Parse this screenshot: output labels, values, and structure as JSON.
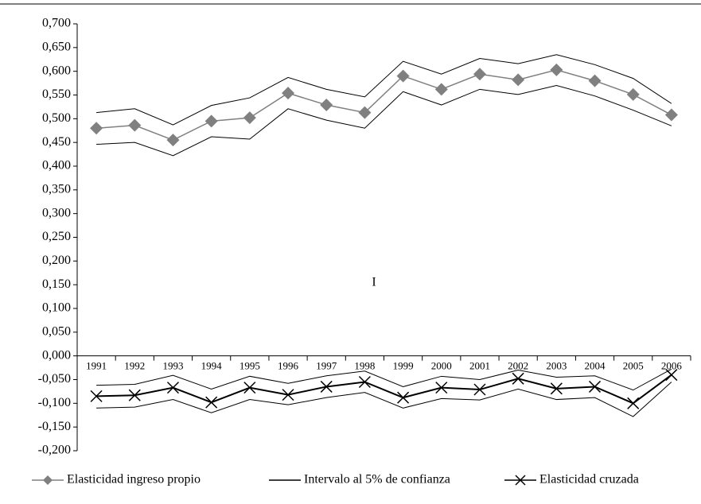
{
  "chart_data": {
    "type": "line",
    "categories": [
      "1991",
      "1992",
      "1993",
      "1994",
      "1995",
      "1996",
      "1997",
      "1998",
      "1999",
      "2000",
      "2001",
      "2002",
      "2003",
      "2004",
      "2005",
      "2006"
    ],
    "series": [
      {
        "name": "Elasticidad ingreso propio",
        "color": "#808080",
        "marker": "diamond",
        "values": [
          0.48,
          0.486,
          0.455,
          0.495,
          0.502,
          0.554,
          0.529,
          0.513,
          0.59,
          0.562,
          0.594,
          0.582,
          0.603,
          0.58,
          0.551,
          0.508
        ]
      },
      {
        "name": "Elasticidad cruzada",
        "color": "#000000",
        "marker": "x",
        "values": [
          -0.085,
          -0.083,
          -0.067,
          -0.098,
          -0.067,
          -0.082,
          -0.065,
          -0.055,
          -0.088,
          -0.067,
          -0.071,
          -0.048,
          -0.069,
          -0.065,
          -0.1,
          -0.04
        ]
      }
    ],
    "interval": {
      "name": "Intervalo al 5% de confianza",
      "color": "#000000",
      "bands": [
        {
          "upper": [
            0.513,
            0.521,
            0.487,
            0.528,
            0.544,
            0.587,
            0.562,
            0.546,
            0.621,
            0.594,
            0.627,
            0.616,
            0.635,
            0.614,
            0.585,
            0.532
          ],
          "lower": [
            0.446,
            0.45,
            0.422,
            0.462,
            0.457,
            0.521,
            0.497,
            0.48,
            0.557,
            0.529,
            0.562,
            0.551,
            0.57,
            0.548,
            0.518,
            0.485
          ]
        },
        {
          "upper": [
            -0.062,
            -0.06,
            -0.041,
            -0.07,
            -0.043,
            -0.058,
            -0.042,
            -0.032,
            -0.065,
            -0.043,
            -0.05,
            -0.03,
            -0.045,
            -0.042,
            -0.072,
            -0.028
          ],
          "lower": [
            -0.11,
            -0.108,
            -0.092,
            -0.12,
            -0.092,
            -0.103,
            -0.088,
            -0.077,
            -0.11,
            -0.09,
            -0.093,
            -0.07,
            -0.092,
            -0.088,
            -0.128,
            -0.055
          ]
        }
      ]
    },
    "annotation": "I",
    "ylim": [
      -0.2,
      0.7
    ],
    "yticks": [
      {
        "value": 0.7,
        "label": "0,700"
      },
      {
        "value": 0.65,
        "label": "0,650"
      },
      {
        "value": 0.6,
        "label": "0,600"
      },
      {
        "value": 0.55,
        "label": "0,550"
      },
      {
        "value": 0.5,
        "label": "0,500"
      },
      {
        "value": 0.45,
        "label": "0,450"
      },
      {
        "value": 0.4,
        "label": "0,400"
      },
      {
        "value": 0.35,
        "label": "0,350"
      },
      {
        "value": 0.3,
        "label": "0,300"
      },
      {
        "value": 0.25,
        "label": "0,250"
      },
      {
        "value": 0.2,
        "label": "0,200"
      },
      {
        "value": 0.15,
        "label": "0,150"
      },
      {
        "value": 0.1,
        "label": "0,100"
      },
      {
        "value": 0.05,
        "label": "0,050"
      },
      {
        "value": 0,
        "label": "0,000"
      },
      {
        "value": -0.05,
        "label": "-0,050"
      },
      {
        "value": -0.1,
        "label": "-0,100"
      },
      {
        "value": -0.15,
        "label": "-0,150"
      },
      {
        "value": -0.2,
        "label": "-0,200"
      }
    ],
    "grid": false
  }
}
